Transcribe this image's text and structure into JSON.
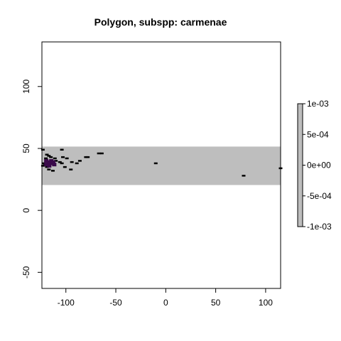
{
  "chart_data": {
    "type": "heatmap",
    "title": "Polygon, subspp: carmenae",
    "xlabel": "",
    "ylabel": "",
    "xlim": [
      -124,
      115
    ],
    "ylim": [
      -63,
      136
    ],
    "x_ticks": [
      -100,
      -50,
      0,
      50,
      100
    ],
    "x_tick_labels": [
      "-100",
      "-50",
      "0",
      "50",
      "100"
    ],
    "y_ticks": [
      -50,
      0,
      50,
      100
    ],
    "y_tick_labels": [
      "-50",
      "0",
      "50",
      "100"
    ],
    "grid": false,
    "background_band": {
      "ymin": 20.5,
      "ymax": 51.5,
      "color": "#bebebe"
    },
    "cells_black": [
      [
        -123,
        49
      ],
      [
        -119,
        45
      ],
      [
        -117,
        44
      ],
      [
        -115,
        43
      ],
      [
        -111,
        42
      ],
      [
        -110,
        40
      ],
      [
        -106,
        39
      ],
      [
        -104,
        38
      ],
      [
        -122,
        38
      ],
      [
        -121,
        37
      ],
      [
        -119,
        35
      ],
      [
        -117,
        33
      ],
      [
        -113,
        32
      ],
      [
        -101,
        35
      ],
      [
        -95,
        33
      ],
      [
        -103,
        43
      ],
      [
        -99,
        42
      ],
      [
        -94,
        39
      ],
      [
        -89,
        38
      ],
      [
        -86,
        40
      ],
      [
        -80,
        43
      ],
      [
        -78,
        43
      ],
      [
        -67,
        46
      ],
      [
        -64,
        46
      ],
      [
        -10,
        38
      ],
      [
        78,
        28
      ],
      [
        115,
        34
      ],
      [
        -104,
        49
      ],
      [
        -120,
        42
      ],
      [
        -123,
        36
      ]
    ],
    "cells_purple": [
      [
        -120,
        40
      ],
      [
        -118,
        39
      ],
      [
        -116,
        38
      ],
      [
        -114,
        38
      ],
      [
        -120,
        37
      ],
      [
        -117,
        36
      ],
      [
        -113,
        39
      ],
      [
        -115,
        40
      ],
      [
        -112,
        37
      ]
    ],
    "legend": {
      "labels": [
        "1e-03",
        "5e-04",
        "0e+00",
        "-5e-04",
        "-1e-03"
      ],
      "values": [
        0.001,
        0.0005,
        0,
        -0.0005,
        -0.001
      ],
      "fill": "#bebebe"
    },
    "colors": {
      "cell": "#000000",
      "purple": "#3a0a4a",
      "band": "#bebebe"
    }
  }
}
